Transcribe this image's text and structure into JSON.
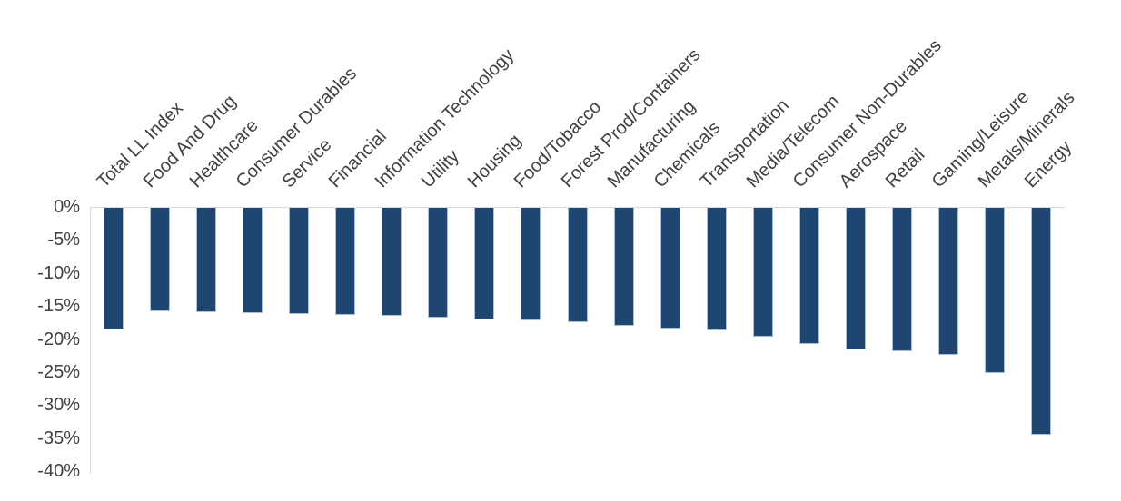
{
  "chart_data": {
    "type": "bar",
    "title": "",
    "xlabel": "",
    "ylabel": "",
    "categories": [
      "Total LL Index",
      "Food And Drug",
      "Healthcare",
      "Consumer Durables",
      "Service",
      "Financial",
      "Information Technology",
      "Utility",
      "Housing",
      "Food/Tobacco",
      "Forest Prod/Containers",
      "Manufacturing",
      "Chemicals",
      "Transportation",
      "Media/Telecom",
      "Consumer Non-Durables",
      "Aerospace",
      "Retail",
      "Gaming/Leisure",
      "Metals/Minerals",
      "Energy"
    ],
    "values": [
      -18.6,
      -15.8,
      -16.0,
      -16.1,
      -16.2,
      -16.3,
      -16.5,
      -16.8,
      -17.0,
      -17.2,
      -17.4,
      -18.0,
      -18.4,
      -18.7,
      -19.7,
      -20.8,
      -21.6,
      -21.9,
      -22.4,
      -25.2,
      -34.5
    ],
    "value_unit": "%",
    "ylim": [
      -40,
      0
    ],
    "ytick_values": [
      0,
      -5,
      -10,
      -15,
      -20,
      -25,
      -30,
      -35,
      -40
    ],
    "ytick_labels": [
      "0%",
      "-5%",
      "-10%",
      "-15%",
      "-20%",
      "-25%",
      "-30%",
      "-35%",
      "-40%"
    ],
    "grid": "zero-line-only",
    "legend": "none",
    "category_label_rotation_deg": 45,
    "colors": {
      "bar_fill": "#1F4571",
      "bar_border": "#AAC3DD",
      "axis_line": "#D9D9D9",
      "text": "#404040",
      "background": "#FFFFFF"
    }
  }
}
